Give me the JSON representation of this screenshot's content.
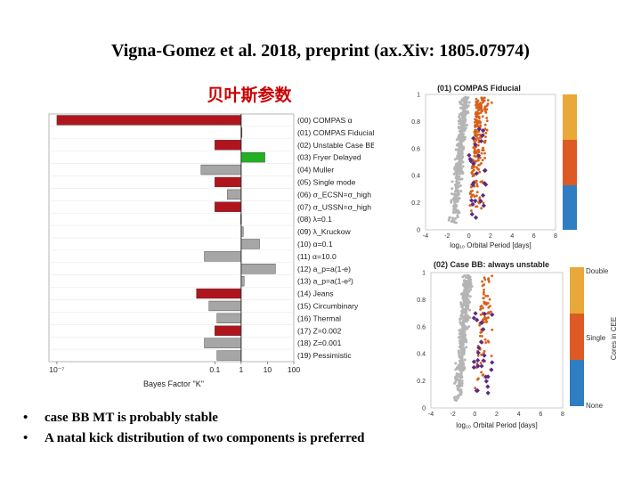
{
  "title": "Vigna-Gomez et al. 2018, preprint (ax.Xiv: 1805.07974)",
  "subtitle": "贝叶斯参数",
  "bullets": [
    "case BB MT is probably stable",
    "A natal kick distribution of two components is preferred"
  ],
  "colors": {
    "red_bar": "#b0151d",
    "green_bar": "#22b122",
    "gray_bar": "#a6a6a6",
    "subtitle": "#cc0000",
    "point_gray": "#b5b5b5",
    "point_orange": "#d9601a",
    "point_purple": "#5a2a82",
    "cee_double": "#e8a93a",
    "cee_single": "#de5a25",
    "cee_none": "#2f7ec1"
  },
  "chart_data": [
    {
      "type": "bar",
      "orientation": "horizontal",
      "xlabel": "Bayes Factor \"K\"",
      "xscale": "log",
      "xlim": [
        5e-08,
        100
      ],
      "xticks": [
        {
          "value": 1e-07,
          "label": "10⁻⁷"
        },
        {
          "value": 0.1,
          "label": "0.1"
        },
        {
          "value": 1,
          "label": "1"
        },
        {
          "value": 10,
          "label": "10"
        },
        {
          "value": 100,
          "label": "100"
        }
      ],
      "categories": [
        "(00) COMPAS α",
        "(01) COMPAS Fiducial",
        "(02) Unstable Case BB",
        "(03) Fryer Delayed",
        "(04) Muller",
        "(05) Single mode",
        "(06) σ_ECSN=σ_high",
        "(07) σ_USSN=σ_high",
        "(08) λ=0.1",
        "(09) λ_Kruckow",
        "(10) α=0.1",
        "(11) α=10.0",
        "(12) a_p=a(1-e)",
        "(13) a_p=a(1-e²)",
        "(14) Jeans",
        "(15) Circumbinary",
        "(16) Thermal",
        "(17) Z=0.002",
        "(18) Z=0.001",
        "(19) Pessimistic"
      ],
      "values": [
        1e-07,
        1,
        0.1,
        8,
        0.03,
        0.1,
        0.3,
        0.1,
        0.95,
        1.2,
        5,
        0.04,
        20,
        1.3,
        0.02,
        0.06,
        0.12,
        0.1,
        0.04,
        0.12
      ],
      "bar_colors": [
        "red",
        "red",
        "red",
        "green",
        "gray",
        "red",
        "gray",
        "red",
        "gray",
        "gray",
        "gray",
        "gray",
        "gray",
        "gray",
        "red",
        "gray",
        "gray",
        "red",
        "gray",
        "gray"
      ]
    },
    {
      "type": "scatter",
      "title": "(01) COMPAS Fiducial",
      "xlabel": "log₁₀ Orbital Period [days]",
      "xlim": [
        -4,
        8
      ],
      "ylim": [
        0,
        1
      ],
      "xticks": [
        "-4",
        "-2",
        "0",
        "2",
        "4",
        "6",
        "8"
      ],
      "yticks": [
        "0",
        "0.2",
        "0.4",
        "0.6",
        "0.8",
        "1"
      ]
    },
    {
      "type": "scatter",
      "title": "(02) Case BB: always unstable",
      "xlabel": "log₁₀ Orbital Period [days]",
      "xlim": [
        -4,
        8
      ],
      "ylim": [
        0,
        1
      ],
      "xticks": [
        "-4",
        "-2",
        "0",
        "2",
        "4",
        "6",
        "8"
      ],
      "yticks": [
        "0",
        "0.2",
        "0.4",
        "0.6",
        "0.8",
        "1"
      ],
      "colorbar": {
        "label": "Cores in CEE",
        "ticks": [
          "Double",
          "Single",
          "None"
        ]
      }
    }
  ]
}
